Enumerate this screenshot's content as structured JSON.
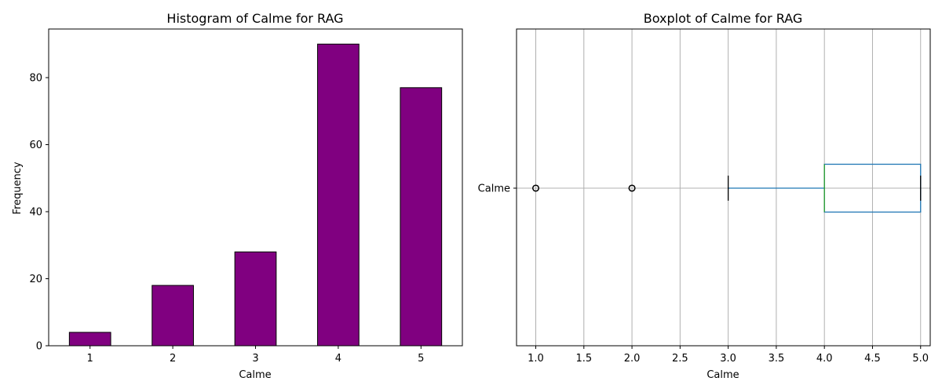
{
  "colors": {
    "bar_fill": "#800080",
    "bar_edge": "#000000",
    "box": "#1f77b4",
    "median": "#2ca02c",
    "grid": "#b0b0b0"
  },
  "chart_data": [
    {
      "type": "bar",
      "title": "Histogram of Calme for RAG",
      "xlabel": "Calme",
      "ylabel": "Frequency",
      "categories": [
        "1",
        "2",
        "3",
        "4",
        "5"
      ],
      "values": [
        4,
        18,
        28,
        90,
        77
      ],
      "ylim": [
        0,
        94.5
      ],
      "yticks": [
        0,
        20,
        40,
        60,
        80
      ],
      "grid": false
    },
    {
      "type": "boxplot",
      "title": "Boxplot of Calme for RAG",
      "xlabel": "Calme",
      "category": "Calme",
      "orientation": "horizontal",
      "xlim": [
        0.8,
        5.1
      ],
      "xticks": [
        1.0,
        1.5,
        2.0,
        2.5,
        3.0,
        3.5,
        4.0,
        4.5,
        5.0
      ],
      "q1": 4,
      "median": 4,
      "q3": 5,
      "whisker_low": 3,
      "whisker_high": 5,
      "outliers": [
        1,
        2
      ],
      "grid": true
    }
  ]
}
